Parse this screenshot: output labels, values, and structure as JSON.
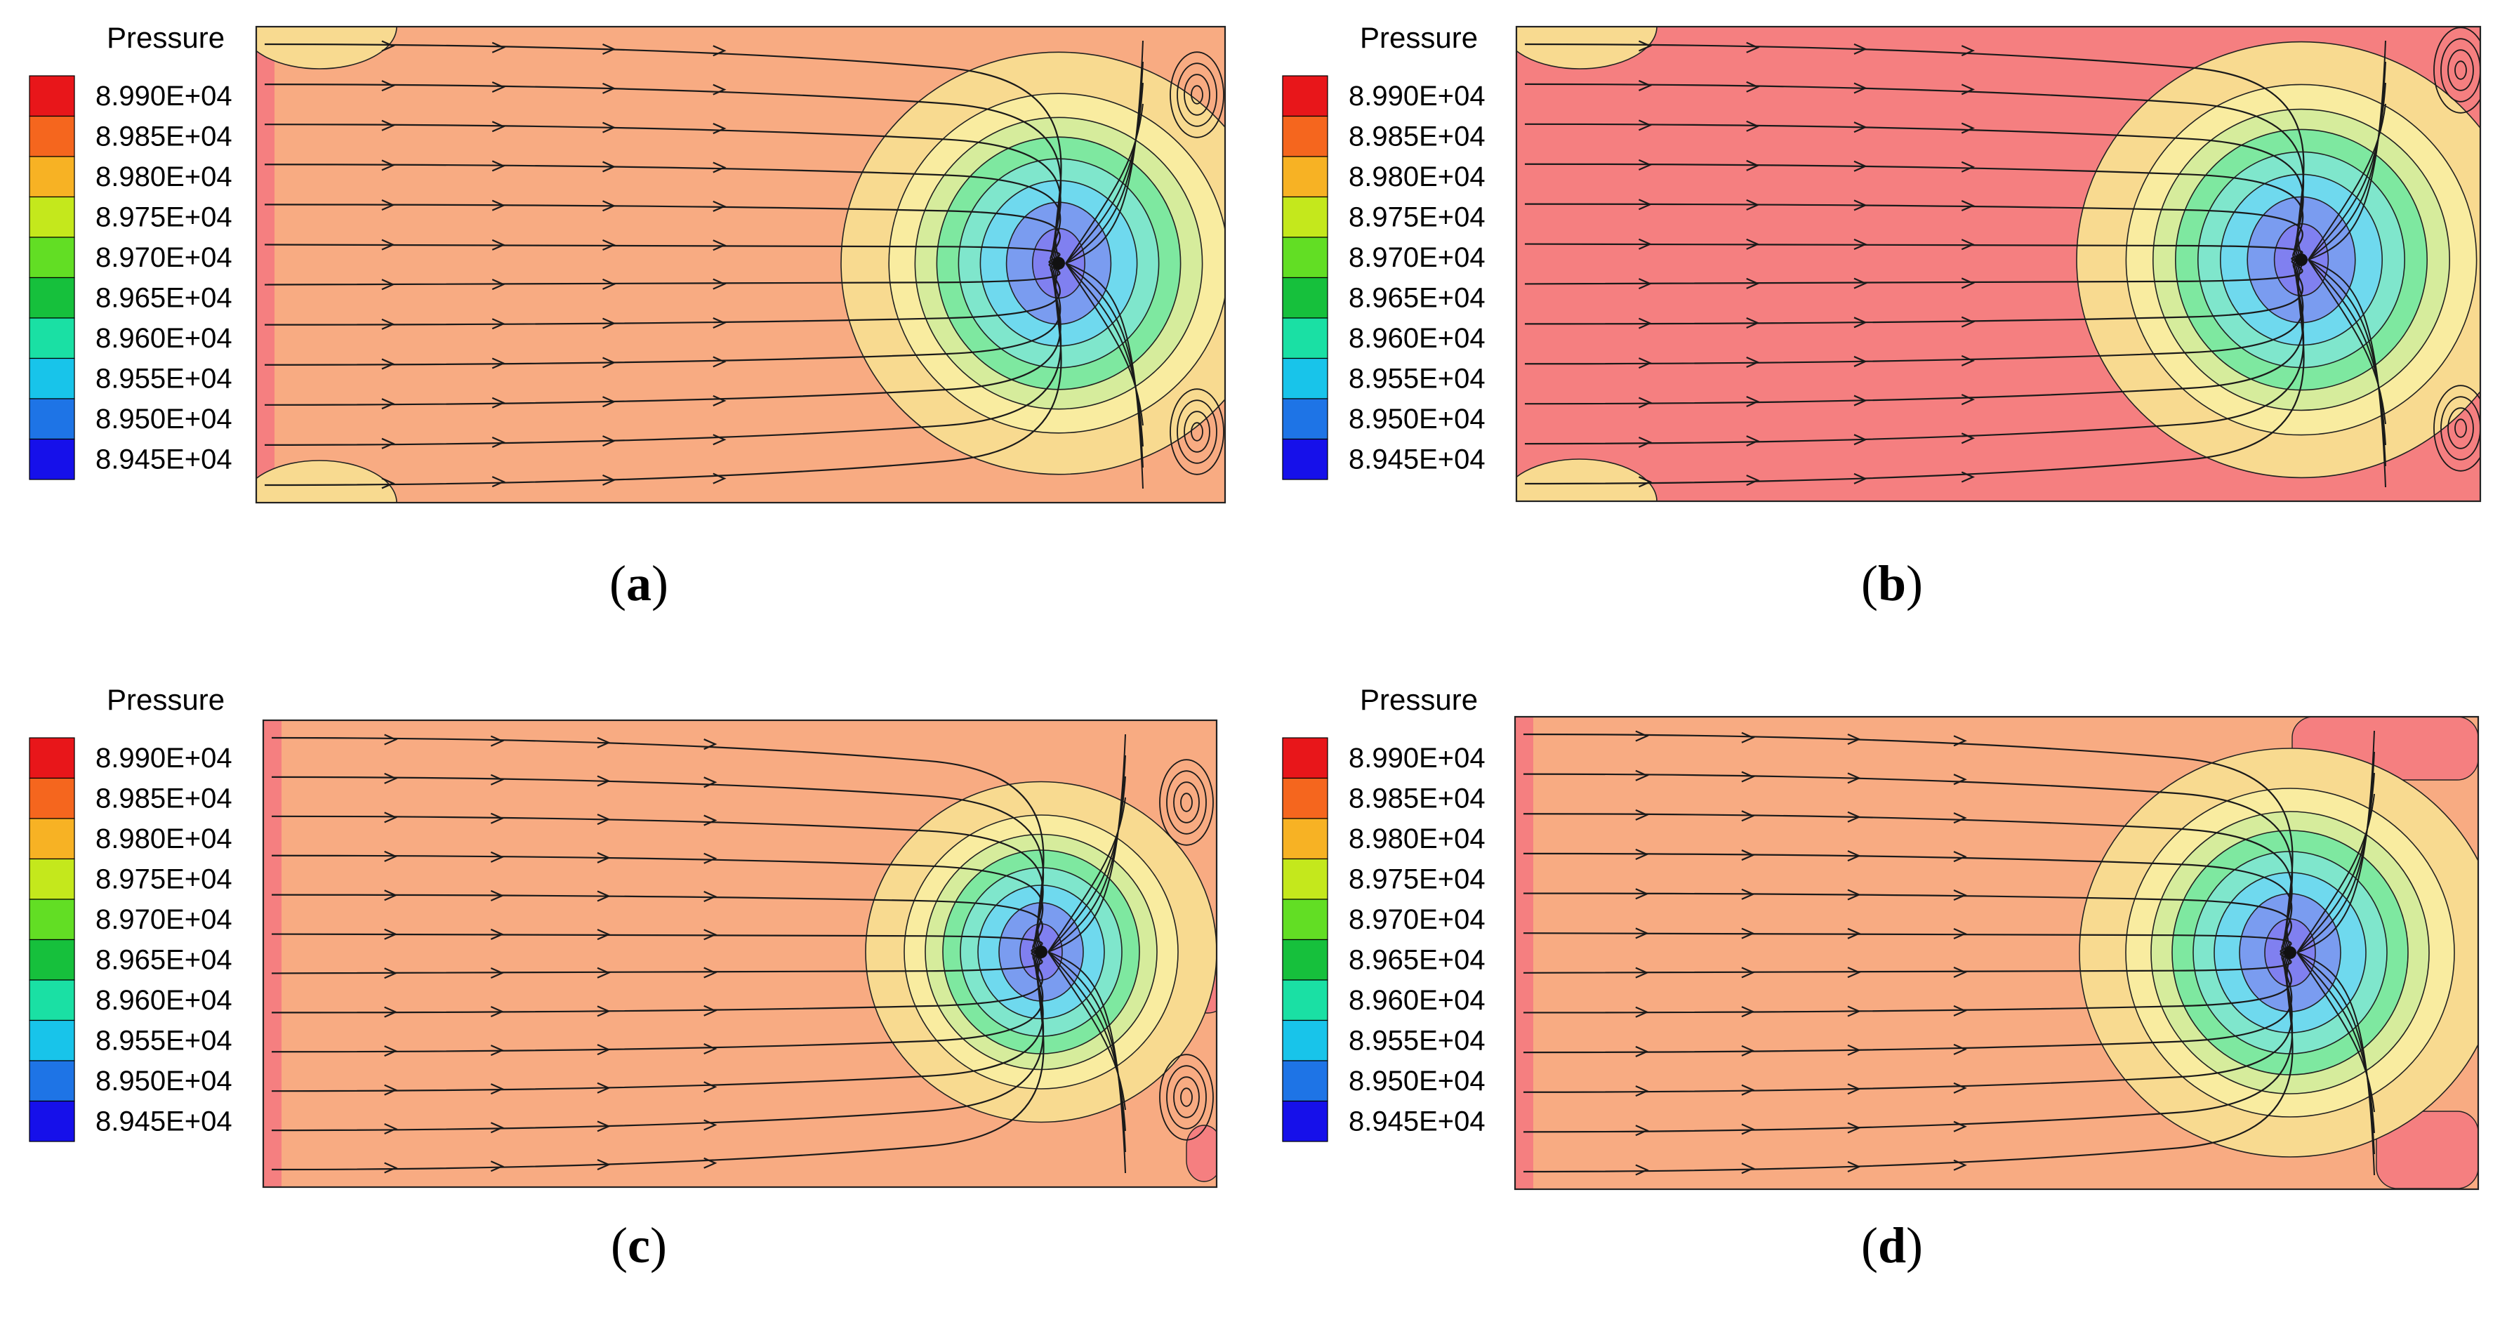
{
  "legend": {
    "title": "Pressure",
    "levels": [
      "8.990E+04",
      "8.985E+04",
      "8.980E+04",
      "8.975E+04",
      "8.970E+04",
      "8.965E+04",
      "8.960E+04",
      "8.955E+04",
      "8.950E+04",
      "8.945E+04"
    ],
    "swatch_colors": [
      "#e8161a",
      "#f5661e",
      "#f7b224",
      "#c4e81c",
      "#62de24",
      "#16c03c",
      "#1ae0a4",
      "#18c4ea",
      "#1e74e6",
      "#1610ea"
    ]
  },
  "fill_colors": {
    "orange_field": "#f8ab82",
    "red_field": "#f57f80",
    "yellow_ring": "#f8da90",
    "light_yellow": "#f9eca0",
    "green_ring": "#7ee8a0",
    "cyan_core": "#6fd9ee",
    "blue_core": "#7a9cf0",
    "violet_core": "#8080f0"
  },
  "panels": [
    {
      "id": "a",
      "caption_open": "(",
      "caption_letter": "a",
      "caption_close": ")"
    },
    {
      "id": "b",
      "caption_open": "(",
      "caption_letter": "b",
      "caption_close": ")"
    },
    {
      "id": "c",
      "caption_open": "(",
      "caption_letter": "c",
      "caption_close": ")"
    },
    {
      "id": "d",
      "caption_open": "(",
      "caption_letter": "d",
      "caption_close": ")"
    }
  ]
}
